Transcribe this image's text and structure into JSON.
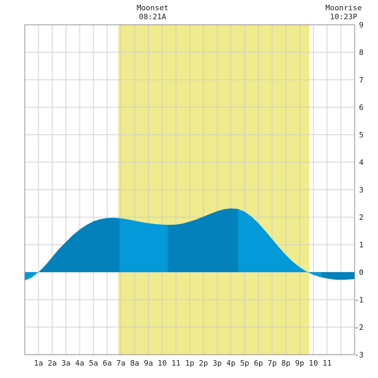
{
  "chart_data": {
    "type": "area",
    "title": "",
    "xlabel": "",
    "ylabel": "",
    "xlim": [
      0,
      24
    ],
    "ylim": [
      -3,
      9
    ],
    "grid": true,
    "x_ticks": [
      {
        "x": 1,
        "label": "1a"
      },
      {
        "x": 2,
        "label": "2a"
      },
      {
        "x": 3,
        "label": "3a"
      },
      {
        "x": 4,
        "label": "4a"
      },
      {
        "x": 5,
        "label": "5a"
      },
      {
        "x": 6,
        "label": "6a"
      },
      {
        "x": 7,
        "label": "7a"
      },
      {
        "x": 8,
        "label": "8a"
      },
      {
        "x": 9,
        "label": "9a"
      },
      {
        "x": 10,
        "label": "10"
      },
      {
        "x": 11,
        "label": "11"
      },
      {
        "x": 12,
        "label": "1p"
      },
      {
        "x": 13,
        "label": "2p"
      },
      {
        "x": 14,
        "label": "3p"
      },
      {
        "x": 15,
        "label": "4p"
      },
      {
        "x": 16,
        "label": "5p"
      },
      {
        "x": 17,
        "label": "6p"
      },
      {
        "x": 18,
        "label": "7p"
      },
      {
        "x": 19,
        "label": "8p"
      },
      {
        "x": 20,
        "label": "9p"
      },
      {
        "x": 21,
        "label": "10"
      },
      {
        "x": 22,
        "label": "11"
      }
    ],
    "y_ticks": [
      {
        "y": 9,
        "label": "9"
      },
      {
        "y": 8,
        "label": "8"
      },
      {
        "y": 7,
        "label": "7"
      },
      {
        "y": 6,
        "label": "6"
      },
      {
        "y": 5,
        "label": "5"
      },
      {
        "y": 4,
        "label": "4"
      },
      {
        "y": 3,
        "label": "3"
      },
      {
        "y": 2,
        "label": "2"
      },
      {
        "y": 1,
        "label": "1"
      },
      {
        "y": 0,
        "label": "0"
      },
      {
        "y": -1,
        "label": "-1"
      },
      {
        "y": -2,
        "label": "-2"
      },
      {
        "y": -3,
        "label": "-3"
      }
    ],
    "daylight": {
      "start": 6.8,
      "end": 20.7,
      "color": "#f0eb8c"
    },
    "tide": {
      "x": [
        0,
        0.5,
        1,
        1.5,
        2,
        2.5,
        3,
        3.5,
        4,
        4.5,
        5,
        5.5,
        6,
        6.5,
        7,
        7.5,
        8,
        8.5,
        9,
        9.5,
        10,
        10.5,
        11,
        11.5,
        12,
        12.5,
        13,
        13.5,
        14,
        14.5,
        15,
        15.5,
        16,
        16.5,
        17,
        17.5,
        18,
        18.5,
        19,
        19.5,
        20,
        20.5,
        21,
        21.5,
        22,
        22.5,
        23,
        23.5,
        24
      ],
      "y": [
        -0.3,
        -0.2,
        0.0,
        0.25,
        0.55,
        0.85,
        1.1,
        1.35,
        1.55,
        1.72,
        1.85,
        1.93,
        1.97,
        1.98,
        1.96,
        1.92,
        1.87,
        1.82,
        1.78,
        1.75,
        1.73,
        1.72,
        1.73,
        1.77,
        1.84,
        1.92,
        2.02,
        2.12,
        2.22,
        2.29,
        2.32,
        2.3,
        2.2,
        2.02,
        1.78,
        1.5,
        1.2,
        0.9,
        0.62,
        0.38,
        0.18,
        0.02,
        -0.1,
        -0.18,
        -0.23,
        -0.27,
        -0.28,
        -0.27,
        -0.25
      ]
    },
    "tide_segments": [
      {
        "start": 0,
        "end": 1,
        "color": "#0499d8"
      },
      {
        "start": 1,
        "end": 6.9,
        "color": "#0381bb"
      },
      {
        "start": 6.9,
        "end": 10.4,
        "color": "#0499d8"
      },
      {
        "start": 10.4,
        "end": 15.5,
        "color": "#0381bb"
      },
      {
        "start": 15.5,
        "end": 21.6,
        "color": "#0499d8"
      },
      {
        "start": 21.6,
        "end": 24,
        "color": "#0381bb"
      }
    ],
    "annotations": {
      "moonset": {
        "label": "Moonset",
        "time": "08:21A",
        "x": 9.3
      },
      "moonrise": {
        "label": "Moonrise",
        "time": "10:23P",
        "x": 23.2
      }
    }
  }
}
